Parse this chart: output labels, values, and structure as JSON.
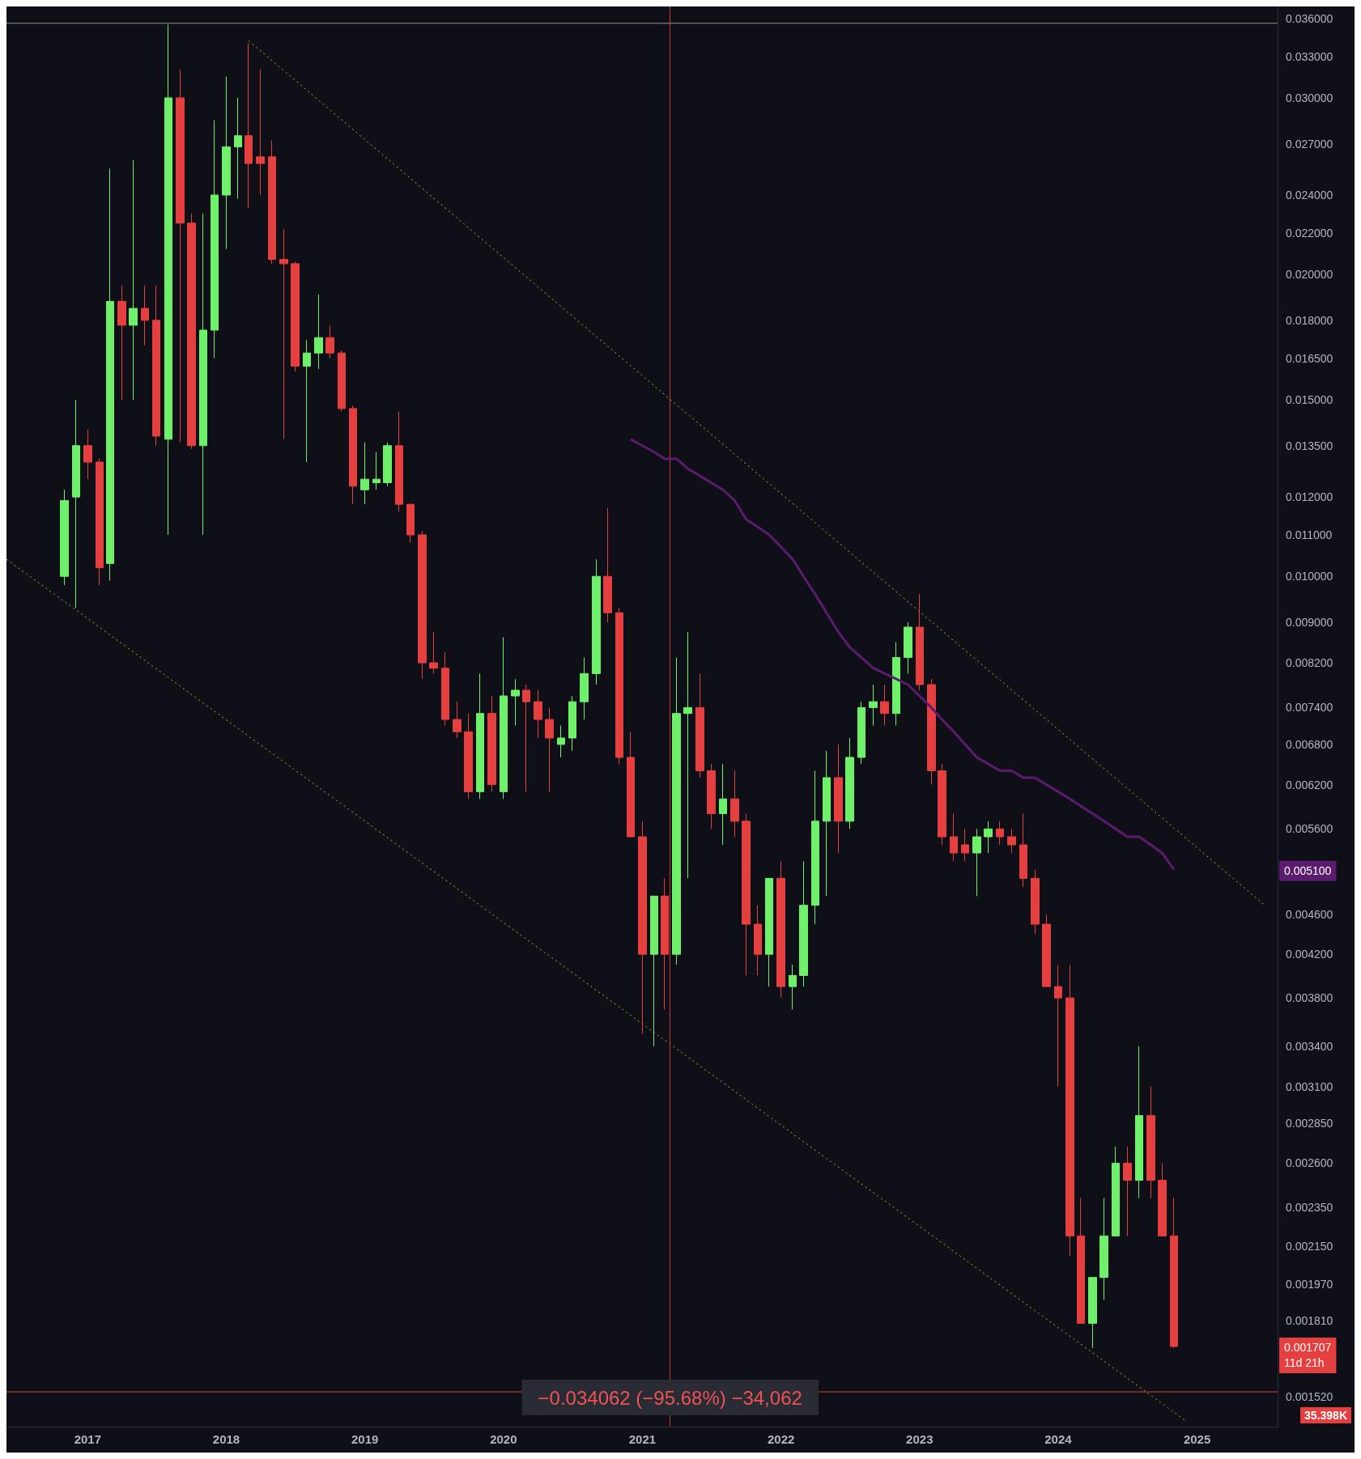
{
  "chart_data": {
    "type": "candlestick",
    "log": "y",
    "x": [
      "2016-11",
      "2016-12",
      "2017-01",
      "2017-02",
      "2017-03",
      "2017-04",
      "2017-05",
      "2017-06",
      "2017-07",
      "2017-08",
      "2017-09",
      "2017-10",
      "2017-11",
      "2017-12",
      "2018-01",
      "2018-02",
      "2018-03",
      "2018-04",
      "2018-05",
      "2018-06",
      "2018-07",
      "2018-08",
      "2018-09",
      "2018-10",
      "2018-11",
      "2018-12",
      "2019-01",
      "2019-02",
      "2019-03",
      "2019-04",
      "2019-05",
      "2019-06",
      "2019-07",
      "2019-08",
      "2019-09",
      "2019-10",
      "2019-11",
      "2019-12",
      "2020-01",
      "2020-02",
      "2020-03",
      "2020-04",
      "2020-05",
      "2020-06",
      "2020-07",
      "2020-08",
      "2020-09",
      "2020-10",
      "2020-11",
      "2020-12",
      "2021-01",
      "2021-02",
      "2021-03",
      "2021-04",
      "2021-05",
      "2021-06",
      "2021-07",
      "2021-08",
      "2021-09",
      "2021-10",
      "2021-11",
      "2021-12",
      "2022-01",
      "2022-02",
      "2022-03",
      "2022-04",
      "2022-05",
      "2022-06",
      "2022-07",
      "2022-08",
      "2022-09",
      "2022-10",
      "2022-11",
      "2022-12",
      "2023-01",
      "2023-02",
      "2023-03",
      "2023-04",
      "2023-05",
      "2023-06",
      "2023-07",
      "2023-08",
      "2023-09",
      "2023-10",
      "2023-11",
      "2023-12",
      "2024-01",
      "2024-02",
      "2024-03",
      "2024-04",
      "2024-05",
      "2024-06",
      "2024-07",
      "2024-08",
      "2024-09",
      "2024-10",
      "2024-11"
    ],
    "xlim": [
      "2016-06",
      "2025-08"
    ],
    "xticks": [
      "2017",
      "2018",
      "2019",
      "2020",
      "2021",
      "2022",
      "2023",
      "2024",
      "2025"
    ],
    "ylim": [
      0.00142,
      0.037
    ],
    "yticks": [
      {
        "value": 0.00152,
        "label": "0.001520"
      },
      {
        "value": 0.00181,
        "label": "0.001810"
      },
      {
        "value": 0.00197,
        "label": "0.001970"
      },
      {
        "value": 0.00215,
        "label": "0.002150"
      },
      {
        "value": 0.00235,
        "label": "0.002350"
      },
      {
        "value": 0.0026,
        "label": "0.002600"
      },
      {
        "value": 0.00285,
        "label": "0.002850"
      },
      {
        "value": 0.0031,
        "label": "0.003100"
      },
      {
        "value": 0.0034,
        "label": "0.003400"
      },
      {
        "value": 0.0038,
        "label": "0.003800"
      },
      {
        "value": 0.0042,
        "label": "0.004200"
      },
      {
        "value": 0.0046,
        "label": "0.004600"
      },
      {
        "value": 0.0056,
        "label": "0.005600"
      },
      {
        "value": 0.0062,
        "label": "0.006200"
      },
      {
        "value": 0.0068,
        "label": "0.006800"
      },
      {
        "value": 0.0074,
        "label": "0.007400"
      },
      {
        "value": 0.0082,
        "label": "0.008200"
      },
      {
        "value": 0.009,
        "label": "0.009000"
      },
      {
        "value": 0.01,
        "label": "0.010000"
      },
      {
        "value": 0.011,
        "label": "0.011000"
      },
      {
        "value": 0.012,
        "label": "0.012000"
      },
      {
        "value": 0.0135,
        "label": "0.013500"
      },
      {
        "value": 0.015,
        "label": "0.015000"
      },
      {
        "value": 0.0165,
        "label": "0.016500"
      },
      {
        "value": 0.018,
        "label": "0.018000"
      },
      {
        "value": 0.02,
        "label": "0.020000"
      },
      {
        "value": 0.022,
        "label": "0.022000"
      },
      {
        "value": 0.024,
        "label": "0.024000"
      },
      {
        "value": 0.027,
        "label": "0.027000"
      },
      {
        "value": 0.03,
        "label": "0.030000"
      },
      {
        "value": 0.033,
        "label": "0.033000"
      },
      {
        "value": 0.036,
        "label": "0.036000"
      }
    ],
    "grid": false,
    "series": [
      {
        "colors": [
          "#6ef06a",
          "#6ef06a",
          "#e5403f",
          "#e5403f",
          "#6ef06a",
          "#e5403f",
          "#6ef06a",
          "#e5403f",
          "#e5403f",
          "#6ef06a",
          "#e5403f",
          "#e5403f",
          "#6ef06a",
          "#6ef06a",
          "#6ef06a",
          "#6ef06a",
          "#e5403f",
          "#e5403f",
          "#e5403f",
          "#e5403f",
          "#e5403f",
          "#6ef06a",
          "#6ef06a",
          "#e5403f",
          "#e5403f",
          "#e5403f",
          "#6ef06a",
          "#6ef06a",
          "#6ef06a",
          "#e5403f",
          "#e5403f",
          "#e5403f",
          "#e5403f",
          "#e5403f",
          "#e5403f",
          "#e5403f",
          "#6ef06a",
          "#e5403f",
          "#6ef06a",
          "#6ef06a",
          "#e5403f",
          "#e5403f",
          "#e5403f",
          "#6ef06a",
          "#6ef06a",
          "#6ef06a",
          "#6ef06a",
          "#e5403f",
          "#e5403f",
          "#e5403f",
          "#e5403f",
          "#6ef06a",
          "#e5403f",
          "#6ef06a",
          "#6ef06a",
          "#e5403f",
          "#e5403f",
          "#6ef06a",
          "#e5403f",
          "#e5403f",
          "#e5403f",
          "#6ef06a",
          "#e5403f",
          "#6ef06a",
          "#6ef06a",
          "#6ef06a",
          "#6ef06a",
          "#e5403f",
          "#6ef06a",
          "#6ef06a",
          "#6ef06a",
          "#e5403f",
          "#6ef06a",
          "#6ef06a",
          "#e5403f",
          "#e5403f",
          "#e5403f",
          "#e5403f",
          "#e5403f",
          "#6ef06a",
          "#6ef06a",
          "#e5403f",
          "#e5403f",
          "#e5403f",
          "#e5403f",
          "#e5403f",
          "#e5403f",
          "#e5403f",
          "#e5403f",
          "#6ef06a",
          "#6ef06a",
          "#6ef06a",
          "#e5403f",
          "#6ef06a",
          "#e5403f",
          "#e5403f",
          "#e5403f"
        ],
        "ohlc": [
          [
            0.01,
            0.0122,
            0.0098,
            0.0119
          ],
          [
            0.012,
            0.015,
            0.0093,
            0.0135
          ],
          [
            0.0135,
            0.014,
            0.0125,
            0.013
          ],
          [
            0.013,
            0.0131,
            0.0098,
            0.0102
          ],
          [
            0.0103,
            0.0255,
            0.0099,
            0.0188
          ],
          [
            0.0188,
            0.0195,
            0.015,
            0.0178
          ],
          [
            0.0178,
            0.026,
            0.015,
            0.0185
          ],
          [
            0.0185,
            0.0195,
            0.017,
            0.018
          ],
          [
            0.018,
            0.0195,
            0.0135,
            0.0138
          ],
          [
            0.0137,
            0.0355,
            0.011,
            0.03
          ],
          [
            0.03,
            0.032,
            0.0136,
            0.0225
          ],
          [
            0.0225,
            0.023,
            0.0134,
            0.0135
          ],
          [
            0.0135,
            0.023,
            0.011,
            0.0176
          ],
          [
            0.0176,
            0.0285,
            0.0165,
            0.024
          ],
          [
            0.024,
            0.0315,
            0.0212,
            0.0268
          ],
          [
            0.0268,
            0.03,
            0.0238,
            0.0275
          ],
          [
            0.0275,
            0.034,
            0.0233,
            0.0258
          ],
          [
            0.0262,
            0.032,
            0.024,
            0.0258
          ],
          [
            0.0262,
            0.0272,
            0.0205,
            0.0207
          ],
          [
            0.0207,
            0.0222,
            0.0137,
            0.0205
          ],
          [
            0.0205,
            0.0206,
            0.016,
            0.0162
          ],
          [
            0.0162,
            0.0172,
            0.013,
            0.0167
          ],
          [
            0.0167,
            0.0191,
            0.0161,
            0.0173
          ],
          [
            0.0173,
            0.0178,
            0.0165,
            0.0167
          ],
          [
            0.0167,
            0.0168,
            0.0146,
            0.0147
          ],
          [
            0.0147,
            0.0148,
            0.0118,
            0.0123
          ],
          [
            0.0122,
            0.0136,
            0.0118,
            0.0125
          ],
          [
            0.0124,
            0.0133,
            0.0122,
            0.0125
          ],
          [
            0.0124,
            0.0136,
            0.0123,
            0.0135
          ],
          [
            0.0135,
            0.0146,
            0.0116,
            0.0118
          ],
          [
            0.0118,
            0.0118,
            0.0108,
            0.011
          ],
          [
            0.011,
            0.0111,
            0.0079,
            0.0082
          ],
          [
            0.0082,
            0.0088,
            0.008,
            0.0081
          ],
          [
            0.0081,
            0.0084,
            0.0071,
            0.0072
          ],
          [
            0.0072,
            0.0075,
            0.0069,
            0.007
          ],
          [
            0.007,
            0.0073,
            0.006,
            0.0061
          ],
          [
            0.0061,
            0.008,
            0.006,
            0.0073
          ],
          [
            0.0073,
            0.0076,
            0.0061,
            0.0062
          ],
          [
            0.0061,
            0.0087,
            0.006,
            0.0076
          ],
          [
            0.0076,
            0.0079,
            0.0071,
            0.0077
          ],
          [
            0.0077,
            0.0078,
            0.0061,
            0.0075
          ],
          [
            0.0075,
            0.0077,
            0.0069,
            0.0072
          ],
          [
            0.0072,
            0.0074,
            0.0061,
            0.0069
          ],
          [
            0.0068,
            0.0071,
            0.0066,
            0.0069
          ],
          [
            0.0069,
            0.0076,
            0.0067,
            0.0075
          ],
          [
            0.0075,
            0.0083,
            0.0072,
            0.008
          ],
          [
            0.008,
            0.0104,
            0.0078,
            0.01
          ],
          [
            0.01,
            0.0117,
            0.009,
            0.0092
          ],
          [
            0.0092,
            0.0093,
            0.0065,
            0.0066
          ],
          [
            0.0066,
            0.007,
            0.0055,
            0.0055
          ],
          [
            0.0055,
            0.0057,
            0.0035,
            0.0042
          ],
          [
            0.0042,
            0.0048,
            0.0034,
            0.0048
          ],
          [
            0.0048,
            0.005,
            0.0037,
            0.0042
          ],
          [
            0.0042,
            0.0083,
            0.0041,
            0.0073
          ],
          [
            0.0073,
            0.0088,
            0.005,
            0.0074
          ],
          [
            0.0074,
            0.008,
            0.0063,
            0.0064
          ],
          [
            0.0064,
            0.0065,
            0.0056,
            0.0058
          ],
          [
            0.0058,
            0.0065,
            0.0054,
            0.006
          ],
          [
            0.006,
            0.0064,
            0.0055,
            0.0057
          ],
          [
            0.0057,
            0.0058,
            0.004,
            0.0045
          ],
          [
            0.0045,
            0.0047,
            0.004,
            0.0042
          ],
          [
            0.0042,
            0.005,
            0.0039,
            0.005
          ],
          [
            0.005,
            0.0052,
            0.0038,
            0.0039
          ],
          [
            0.0039,
            0.0041,
            0.0037,
            0.004
          ],
          [
            0.004,
            0.0052,
            0.0039,
            0.0047
          ],
          [
            0.0047,
            0.0064,
            0.0045,
            0.0057
          ],
          [
            0.0057,
            0.0067,
            0.0048,
            0.0063
          ],
          [
            0.0063,
            0.0068,
            0.0053,
            0.0057
          ],
          [
            0.0057,
            0.0069,
            0.0056,
            0.0066
          ],
          [
            0.0066,
            0.0075,
            0.0065,
            0.0074
          ],
          [
            0.0074,
            0.0078,
            0.0071,
            0.0075
          ],
          [
            0.0075,
            0.0078,
            0.0071,
            0.0073
          ],
          [
            0.0073,
            0.0086,
            0.0071,
            0.0083
          ],
          [
            0.0083,
            0.009,
            0.008,
            0.0089
          ],
          [
            0.0089,
            0.0096,
            0.0077,
            0.0078
          ],
          [
            0.0078,
            0.0079,
            0.0062,
            0.0064
          ],
          [
            0.0064,
            0.0065,
            0.0054,
            0.0055
          ],
          [
            0.0055,
            0.0058,
            0.0052,
            0.0053
          ],
          [
            0.0054,
            0.0056,
            0.0052,
            0.0053
          ],
          [
            0.0053,
            0.0056,
            0.0048,
            0.0055
          ],
          [
            0.0055,
            0.0057,
            0.0053,
            0.0056
          ],
          [
            0.0056,
            0.0057,
            0.0054,
            0.0055
          ],
          [
            0.0055,
            0.0056,
            0.0053,
            0.0054
          ],
          [
            0.0054,
            0.0058,
            0.0049,
            0.005
          ],
          [
            0.005,
            0.0051,
            0.0044,
            0.0045
          ],
          [
            0.0045,
            0.0046,
            0.0039,
            0.0039
          ],
          [
            0.0039,
            0.0041,
            0.0031,
            0.0038
          ],
          [
            0.0038,
            0.0041,
            0.0021,
            0.0022
          ],
          [
            0.0022,
            0.0024,
            0.0018,
            0.0018
          ],
          [
            0.0018,
            0.002,
            0.0017,
            0.002
          ],
          [
            0.002,
            0.0024,
            0.0019,
            0.0022
          ],
          [
            0.0022,
            0.0027,
            0.0022,
            0.0026
          ],
          [
            0.0026,
            0.0027,
            0.0022,
            0.0025
          ],
          [
            0.0025,
            0.0034,
            0.0024,
            0.0029
          ],
          [
            0.0029,
            0.0031,
            0.0024,
            0.0025
          ],
          [
            0.0025,
            0.0026,
            0.0022,
            0.0022
          ],
          [
            0.0022,
            0.0024,
            0.0017,
            0.001707
          ]
        ]
      },
      {
        "type": "line",
        "color": "#5b1b6e",
        "marker": "none",
        "line_style": "solid",
        "values": [
          null,
          null,
          null,
          null,
          null,
          null,
          null,
          null,
          null,
          null,
          null,
          null,
          null,
          null,
          null,
          null,
          null,
          null,
          null,
          null,
          null,
          null,
          null,
          null,
          null,
          null,
          null,
          null,
          null,
          null,
          null,
          null,
          null,
          null,
          null,
          null,
          null,
          null,
          null,
          null,
          null,
          null,
          null,
          null,
          null,
          null,
          null,
          null,
          null,
          0.0137,
          0.0135,
          0.0133,
          0.0131,
          0.0131,
          0.0128,
          0.0126,
          0.0124,
          0.0122,
          0.0119,
          0.0114,
          0.0112,
          0.011,
          0.0107,
          0.0104,
          0.01,
          0.0096,
          0.0092,
          0.0088,
          0.0085,
          0.0083,
          0.0081,
          0.008,
          0.0079,
          0.0078,
          0.0076,
          0.0074,
          0.0072,
          0.007,
          0.0068,
          0.0066,
          0.0065,
          0.0064,
          0.0064,
          0.0063,
          0.0063,
          0.0062,
          0.0061,
          0.006,
          0.0059,
          0.0058,
          0.0057,
          0.0056,
          0.0055,
          0.0055,
          0.0054,
          0.0053,
          0.0051
        ]
      },
      {
        "type": "line",
        "color": "#b8b830",
        "marker": "none",
        "line_style": "dotted",
        "x": [
          "2018-03",
          "2025-07"
        ],
        "values": [
          0.0342,
          0.00469
        ]
      },
      {
        "type": "line",
        "color": "#b8b830",
        "marker": "none",
        "line_style": "dotted",
        "x": [
          "2016-06",
          "2024-12"
        ],
        "values": [
          0.0104,
          0.00144
        ]
      }
    ],
    "ref_lines": [
      {
        "axis": "x",
        "value": "2021-03-15",
        "color": "#c0392b"
      },
      {
        "axis": "y",
        "value": 0.0356,
        "color": "#8e9a90"
      },
      {
        "axis": "y",
        "value": 0.001538,
        "color": "#d9413e"
      }
    ],
    "annotations": [
      {
        "text": "−0.034062 (−95.68%) −34,062",
        "x": "2021-03-15",
        "y": 0.001538
      },
      "0.005100",
      "0.001707\n11d 21h",
      "35.398K"
    ]
  }
}
